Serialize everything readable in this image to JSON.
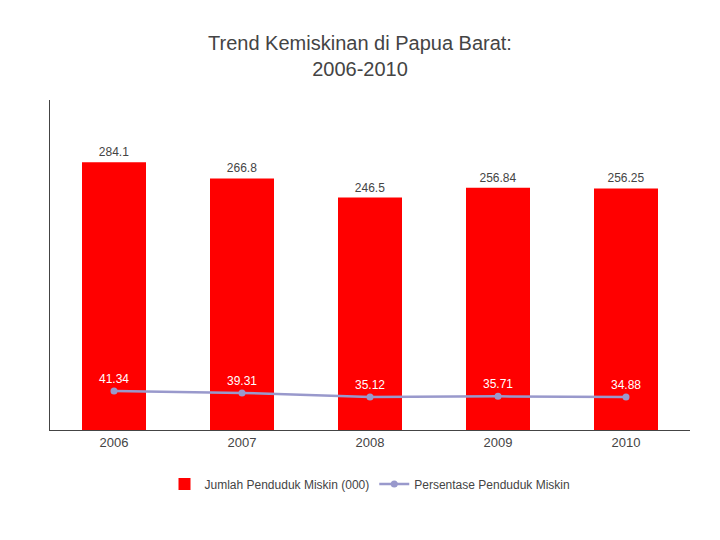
{
  "chart_data": {
    "type": "bar",
    "title": "Trend Kemiskinan di Papua Barat:\n2006-2010",
    "categories": [
      "2006",
      "2007",
      "2008",
      "2009",
      "2010"
    ],
    "series": [
      {
        "name": "Jumlah Penduduk Miskin (000)",
        "type": "bar",
        "color": "#ff0000",
        "values": [
          284.1,
          266.8,
          246.5,
          256.84,
          256.25
        ]
      },
      {
        "name": "Persentase Penduduk Miskin",
        "type": "line",
        "color": "#9999cc",
        "marker": "circle",
        "values": [
          41.34,
          39.31,
          35.12,
          35.71,
          34.88
        ]
      }
    ],
    "ylim": [
      0,
      350
    ],
    "grid": false,
    "legend": "bottom",
    "data_labels": true,
    "tick_labels": "x"
  }
}
